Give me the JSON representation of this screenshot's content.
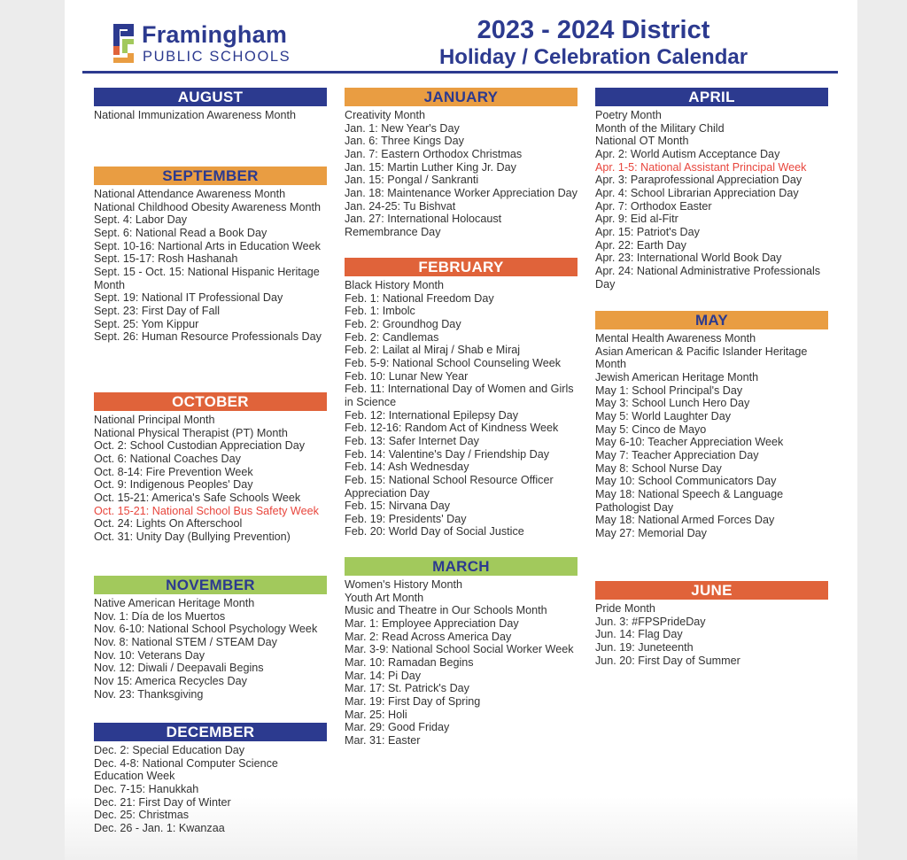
{
  "header": {
    "logo_name": "Framingham",
    "logo_sub": "PUBLIC SCHOOLS",
    "title_line1": "2023 - 2024 District",
    "title_line2": "Holiday / Celebration Calendar"
  },
  "colors": {
    "navy": "#2c3a8f",
    "orange": "#e99d42",
    "red": "#e0633a",
    "green": "#a2c95c",
    "highlight": "#e8453c"
  },
  "columns": [
    [
      {
        "month": "AUGUST",
        "color": "navy",
        "items": [
          {
            "t": "National Immunization Awareness Month"
          }
        ]
      },
      {
        "month": "SEPTEMBER",
        "color": "orange",
        "items": [
          {
            "t": "National Attendance Awareness Month"
          },
          {
            "t": "National Childhood Obesity Awareness Month"
          },
          {
            "t": "Sept. 4: Labor Day"
          },
          {
            "t": "Sept. 6: National Read a Book Day"
          },
          {
            "t": "Sept. 10-16: Nartional Arts in Education Week"
          },
          {
            "t": "Sept. 15-17: Rosh Hashanah"
          },
          {
            "t": "Sept. 15 - Oct. 15: National Hispanic Heritage Month"
          },
          {
            "t": "Sept. 19: National IT Professional Day"
          },
          {
            "t": "Sept. 23: First Day of Fall"
          },
          {
            "t": "Sept. 25: Yom Kippur"
          },
          {
            "t": "Sept. 26: Human Resource Professionals Day"
          }
        ]
      },
      {
        "month": "OCTOBER",
        "color": "red",
        "items": [
          {
            "t": "National Principal Month"
          },
          {
            "t": "National Physical Therapist (PT) Month"
          },
          {
            "t": "Oct. 2: School Custodian Appreciation Day"
          },
          {
            "t": "Oct. 6: National Coaches Day"
          },
          {
            "t": "Oct. 8-14: Fire Prevention Week"
          },
          {
            "t": "Oct. 9: Indigenous Peoples' Day"
          },
          {
            "t": "Oct. 15-21: America's Safe Schools Week"
          },
          {
            "t": "Oct. 15-21: National School Bus Safety Week",
            "hl": true
          },
          {
            "t": "Oct. 24: Lights On Afterschool"
          },
          {
            "t": "Oct. 31: Unity Day (Bullying Prevention)"
          }
        ]
      },
      {
        "month": "NOVEMBER",
        "color": "green",
        "items": [
          {
            "t": "Native American Heritage Month"
          },
          {
            "t": "Nov. 1: Día de los Muertos"
          },
          {
            "t": "Nov. 6-10: National School Psychology Week"
          },
          {
            "t": "Nov. 8: National STEM / STEAM Day"
          },
          {
            "t": "Nov. 10: Veterans Day"
          },
          {
            "t": "Nov. 12: Diwali / Deepavali Begins"
          },
          {
            "t": "Nov 15: America Recycles Day"
          },
          {
            "t": "Nov. 23: Thanksgiving"
          }
        ]
      },
      {
        "month": "DECEMBER",
        "color": "navy",
        "items": [
          {
            "t": "Dec. 2: Special Education Day"
          },
          {
            "t": "Dec. 4-8: National Computer Science Education Week"
          },
          {
            "t": "Dec. 7-15: Hanukkah"
          },
          {
            "t": "Dec. 21: First Day of Winter"
          },
          {
            "t": "Dec. 25: Christmas"
          },
          {
            "t": "Dec. 26 - Jan. 1: Kwanzaa"
          }
        ]
      }
    ],
    [
      {
        "month": "JANUARY",
        "color": "orange",
        "items": [
          {
            "t": "Creativity Month"
          },
          {
            "t": "Jan. 1: New Year's Day"
          },
          {
            "t": "Jan. 6: Three Kings Day"
          },
          {
            "t": "Jan. 7: Eastern Orthodox Christmas"
          },
          {
            "t": "Jan. 15: Martin Luther King Jr. Day"
          },
          {
            "t": "Jan. 15: Pongal / Sankranti"
          },
          {
            "t": "Jan. 18: Maintenance Worker Appreciation Day"
          },
          {
            "t": "Jan. 24-25: Tu Bishvat"
          },
          {
            "t": "Jan. 27: International Holocaust Remembrance Day"
          }
        ]
      },
      {
        "month": "FEBRUARY",
        "color": "red",
        "items": [
          {
            "t": "Black History Month"
          },
          {
            "t": "Feb. 1: National Freedom Day"
          },
          {
            "t": "Feb. 1: Imbolc"
          },
          {
            "t": "Feb. 2: Groundhog Day"
          },
          {
            "t": "Feb. 2: Candlemas"
          },
          {
            "t": "Feb. 2: Lailat al Miraj / Shab e Miraj"
          },
          {
            "t": "Feb. 5-9: National School Counseling Week"
          },
          {
            "t": "Feb. 10: Lunar New Year"
          },
          {
            "t": "Feb. 11: International Day of Women and Girls in Science"
          },
          {
            "t": "Feb. 12: International Epilepsy Day"
          },
          {
            "t": "Feb. 12-16: Random Act of Kindness Week"
          },
          {
            "t": "Feb. 13: Safer Internet Day"
          },
          {
            "t": "Feb. 14: Valentine's Day / Friendship Day"
          },
          {
            "t": "Feb. 14: Ash Wednesday"
          },
          {
            "t": "Feb. 15: National School Resource Officer Appreciation Day"
          },
          {
            "t": "Feb. 15: Nirvana Day"
          },
          {
            "t": "Feb. 19: Presidents' Day"
          },
          {
            "t": "Feb. 20: World Day of Social Justice"
          }
        ]
      },
      {
        "month": "MARCH",
        "color": "green",
        "items": [
          {
            "t": "Women's History Month"
          },
          {
            "t": "Youth Art Month"
          },
          {
            "t": "Music and Theatre in Our Schools Month"
          },
          {
            "t": "Mar. 1: Employee Appreciation Day"
          },
          {
            "t": "Mar. 2: Read Across America Day"
          },
          {
            "t": "Mar. 3-9: National School Social Worker Week"
          },
          {
            "t": "Mar. 10: Ramadan Begins"
          },
          {
            "t": "Mar. 14: Pi Day"
          },
          {
            "t": "Mar. 17: St. Patrick's Day"
          },
          {
            "t": "Mar. 19: First Day of Spring"
          },
          {
            "t": "Mar. 25: Holi"
          },
          {
            "t": "Mar. 29: Good Friday"
          },
          {
            "t": "Mar. 31: Easter"
          }
        ]
      }
    ],
    [
      {
        "month": "APRIL",
        "color": "navy",
        "items": [
          {
            "t": "Poetry Month"
          },
          {
            "t": "Month of the Military Child"
          },
          {
            "t": "National OT Month"
          },
          {
            "t": "Apr. 2: World Autism Acceptance Day"
          },
          {
            "t": "Apr. 1-5: National Assistant Principal Week",
            "hl": true
          },
          {
            "t": "Apr. 3: Paraprofessional Appreciation Day"
          },
          {
            "t": "Apr. 4: School Librarian Appreciation Day"
          },
          {
            "t": "Apr. 7: Orthodox Easter"
          },
          {
            "t": "Apr. 9: Eid al-Fitr"
          },
          {
            "t": "Apr. 15: Patriot's Day"
          },
          {
            "t": "Apr. 22: Earth Day"
          },
          {
            "t": "Apr. 23: International World Book Day"
          },
          {
            "t": "Apr. 24: National Administrative Professionals Day"
          }
        ]
      },
      {
        "month": "MAY",
        "color": "orange",
        "items": [
          {
            "t": "Mental Health Awareness Month"
          },
          {
            "t": "Asian American & Pacific Islander Heritage Month"
          },
          {
            "t": "Jewish American Heritage Month"
          },
          {
            "t": "May 1: School Principal's Day"
          },
          {
            "t": "May 3: School Lunch Hero Day"
          },
          {
            "t": "May 5: World Laughter Day"
          },
          {
            "t": "May 5: Cinco de Mayo"
          },
          {
            "t": "May 6-10: Teacher Appreciation Week"
          },
          {
            "t": "May 7: Teacher Appreciation Day"
          },
          {
            "t": "May 8: School Nurse Day"
          },
          {
            "t": "May 10: School Communicators Day"
          },
          {
            "t": "May 18: National Speech & Language Pathologist Day"
          },
          {
            "t": "May 18: National Armed Forces Day"
          },
          {
            "t": "May 27: Memorial Day"
          }
        ]
      },
      {
        "month": "JUNE",
        "color": "red",
        "items": [
          {
            "t": "Pride Month"
          },
          {
            "t": "Jun. 3: #FPSPrideDay"
          },
          {
            "t": "Jun. 14: Flag Day"
          },
          {
            "t": "Jun. 19: Juneteenth"
          },
          {
            "t": "Jun. 20: First Day of Summer"
          }
        ]
      }
    ]
  ]
}
